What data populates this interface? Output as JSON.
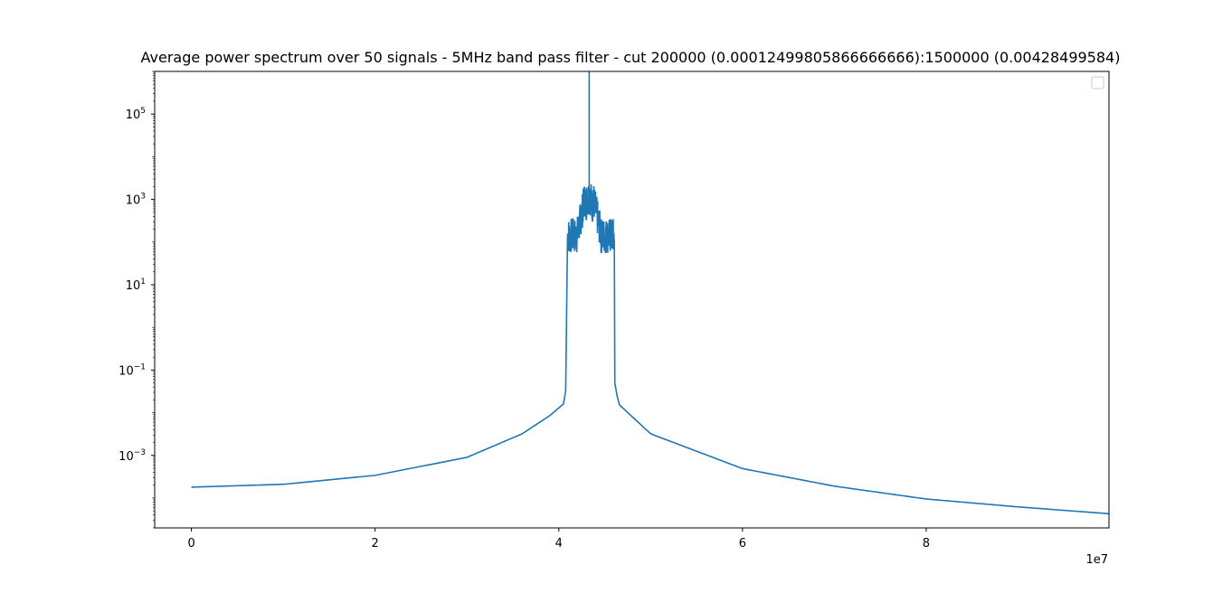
{
  "chart_data": {
    "type": "line",
    "title": "Average power spectrum over 50 signals - 5MHz band pass filter - cut 200000 (0.00012499805866666666):1500000 (0.00428499584)",
    "xlabel": "",
    "ylabel": "",
    "x_offset_label": "1e7",
    "x_scale": "linear",
    "y_scale": "log",
    "xlim": [
      -4000000,
      99900000
    ],
    "ylim_log10": [
      -4.7,
      6.0
    ],
    "x_ticks": [
      0,
      20000000,
      40000000,
      60000000,
      80000000
    ],
    "x_tick_labels": [
      "0",
      "2",
      "4",
      "6",
      "8"
    ],
    "y_ticks_log10": [
      -3,
      -1,
      1,
      3,
      5
    ],
    "y_tick_labels": [
      {
        "base": "10",
        "exp": "−3"
      },
      {
        "base": "10",
        "exp": "−1"
      },
      {
        "base": "10",
        "exp": "1"
      },
      {
        "base": "10",
        "exp": "3"
      },
      {
        "base": "10",
        "exp": "5"
      }
    ],
    "grid": false,
    "legend": {
      "placement": "top-right",
      "entries": []
    },
    "series": [
      {
        "color": "#1f77b4",
        "envelope_points": [
          [
            0,
            0.00018
          ],
          [
            10000000,
            0.00021
          ],
          [
            20000000,
            0.00034
          ],
          [
            30000000,
            0.0009
          ],
          [
            36000000,
            0.0032
          ],
          [
            39000000,
            0.0085
          ],
          [
            40500000,
            0.016
          ],
          [
            40900000,
            0.05
          ],
          [
            41000000,
            150
          ],
          [
            43300000,
            2000000
          ],
          [
            46000000,
            150
          ],
          [
            46100000,
            0.05
          ],
          [
            46500000,
            0.016
          ],
          [
            50000000,
            0.0032
          ],
          [
            60000000,
            0.00049
          ],
          [
            70000000,
            0.00019
          ],
          [
            80000000,
            9.5e-05
          ],
          [
            90000000,
            6.2e-05
          ],
          [
            99900000,
            4.3e-05
          ]
        ]
      }
    ]
  }
}
